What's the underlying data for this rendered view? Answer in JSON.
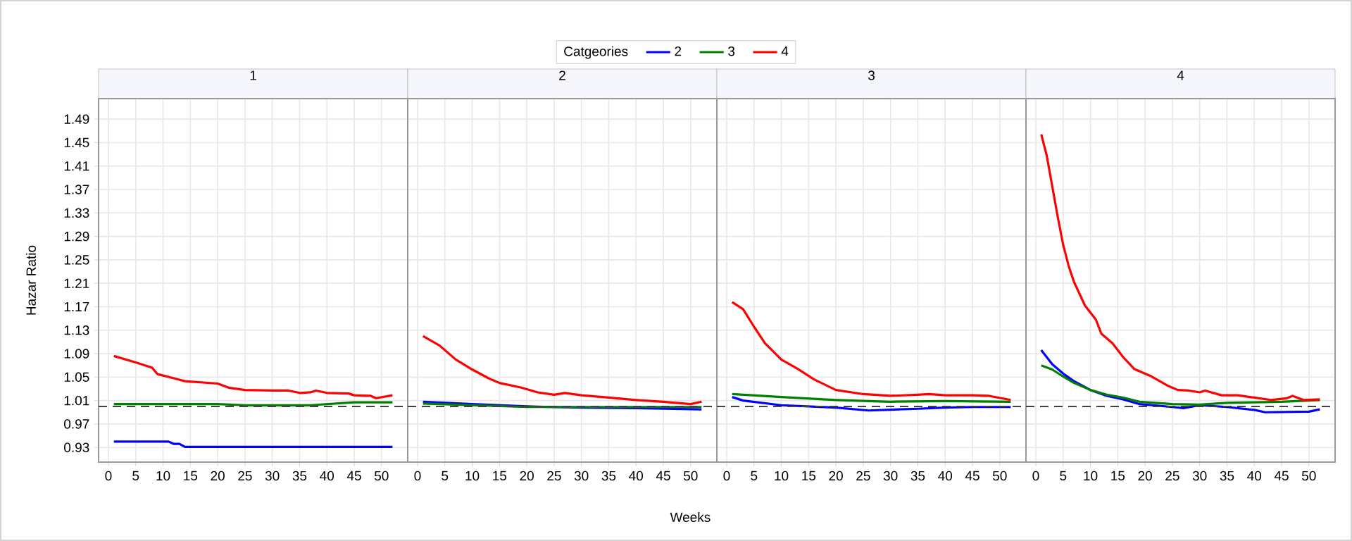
{
  "chart_data": [
    {
      "type": "line",
      "title": "1",
      "ylabel": "Hazar Ratio",
      "legend_title": "Catgeories",
      "legend": "top",
      "grid": true,
      "xlim": [
        -1.8,
        54.8
      ],
      "ylim": [
        0.905,
        1.525
      ],
      "xticks": [
        0,
        5,
        10,
        15,
        20,
        25,
        30,
        35,
        40,
        45,
        50
      ],
      "yticks": [
        0.93,
        0.97,
        1.01,
        1.05,
        1.09,
        1.13,
        1.17,
        1.21,
        1.25,
        1.29,
        1.33,
        1.37,
        1.41,
        1.45,
        1.49
      ],
      "ref_lines": [
        {
          "axis": "y",
          "value": 1,
          "color": "#404040",
          "line_style": "dashed"
        }
      ],
      "series": [
        {
          "name": "2",
          "color": "#0000ff",
          "x": [
            1,
            11,
            12,
            13,
            14,
            52
          ],
          "values": [
            0.94,
            0.94,
            0.936,
            0.936,
            0.931,
            0.931
          ]
        },
        {
          "name": "3",
          "color": "#008000",
          "x": [
            1,
            20,
            25,
            37,
            45,
            52
          ],
          "values": [
            1.004,
            1.004,
            1.002,
            1.002,
            1.007,
            1.007
          ]
        },
        {
          "name": "4",
          "color": "#ff0000",
          "x": [
            1,
            5,
            8,
            9,
            12,
            14,
            20,
            22,
            25,
            30,
            33,
            35,
            37,
            38,
            40,
            44,
            45,
            48,
            49,
            52
          ],
          "values": [
            1.086,
            1.075,
            1.066,
            1.055,
            1.048,
            1.043,
            1.039,
            1.032,
            1.028,
            1.027,
            1.027,
            1.023,
            1.024,
            1.027,
            1.023,
            1.022,
            1.019,
            1.018,
            1.014,
            1.019
          ]
        }
      ]
    },
    {
      "type": "line",
      "title": "2",
      "xlabel": "Weeks",
      "tick_labels": "x",
      "grid": true,
      "xlim": [
        -1.8,
        54.8
      ],
      "ylim": [
        0.905,
        1.525
      ],
      "xticks": [
        0,
        5,
        10,
        15,
        20,
        25,
        30,
        35,
        40,
        45,
        50
      ],
      "yticks": [
        0.93,
        0.97,
        1.01,
        1.05,
        1.09,
        1.13,
        1.17,
        1.21,
        1.25,
        1.29,
        1.33,
        1.37,
        1.41,
        1.45,
        1.49
      ],
      "ref_lines": [
        {
          "axis": "y",
          "value": 1,
          "color": "#404040",
          "line_style": "dashed"
        }
      ],
      "series": [
        {
          "color": "#0000ff",
          "x": [
            1,
            10,
            20,
            30,
            40,
            52
          ],
          "values": [
            1.008,
            1.004,
            1.0,
            0.998,
            0.997,
            0.995
          ]
        },
        {
          "color": "#008000",
          "x": [
            1,
            10,
            20,
            30,
            40,
            52
          ],
          "values": [
            1.005,
            1.002,
            0.999,
            0.999,
            0.999,
            0.999
          ]
        },
        {
          "color": "#ff0000",
          "x": [
            1,
            4,
            7,
            10,
            13,
            15,
            19,
            22,
            25,
            27,
            30,
            35,
            40,
            45,
            50,
            52
          ],
          "values": [
            1.12,
            1.104,
            1.08,
            1.063,
            1.048,
            1.04,
            1.032,
            1.024,
            1.02,
            1.023,
            1.019,
            1.015,
            1.011,
            1.008,
            1.004,
            1.008
          ]
        }
      ]
    },
    {
      "type": "line",
      "title": "3",
      "tick_labels": "x",
      "grid": true,
      "xlim": [
        -1.8,
        54.8
      ],
      "ylim": [
        0.905,
        1.525
      ],
      "xticks": [
        0,
        5,
        10,
        15,
        20,
        25,
        30,
        35,
        40,
        45,
        50
      ],
      "yticks": [
        0.93,
        0.97,
        1.01,
        1.05,
        1.09,
        1.13,
        1.17,
        1.21,
        1.25,
        1.29,
        1.33,
        1.37,
        1.41,
        1.45,
        1.49
      ],
      "ref_lines": [
        {
          "axis": "y",
          "value": 1,
          "color": "#404040",
          "line_style": "dashed"
        }
      ],
      "series": [
        {
          "color": "#0000ff",
          "x": [
            1,
            3,
            10,
            20,
            26,
            35,
            40,
            45,
            52
          ],
          "values": [
            1.016,
            1.01,
            1.002,
            0.998,
            0.993,
            0.996,
            0.998,
            0.999,
            0.999
          ]
        },
        {
          "color": "#008000",
          "x": [
            1,
            10,
            20,
            30,
            40,
            52
          ],
          "values": [
            1.021,
            1.016,
            1.011,
            1.008,
            1.009,
            1.008
          ]
        },
        {
          "color": "#ff0000",
          "x": [
            1,
            3,
            5,
            7,
            10,
            13,
            16,
            20,
            25,
            30,
            35,
            37,
            40,
            45,
            48,
            52
          ],
          "values": [
            1.178,
            1.166,
            1.136,
            1.108,
            1.08,
            1.064,
            1.046,
            1.028,
            1.021,
            1.018,
            1.02,
            1.021,
            1.019,
            1.019,
            1.018,
            1.011
          ]
        }
      ]
    },
    {
      "type": "line",
      "title": "4",
      "tick_labels": "x",
      "grid": true,
      "xlim": [
        -1.8,
        54.8
      ],
      "ylim": [
        0.905,
        1.525
      ],
      "xticks": [
        0,
        5,
        10,
        15,
        20,
        25,
        30,
        35,
        40,
        45,
        50
      ],
      "yticks": [
        0.93,
        0.97,
        1.01,
        1.05,
        1.09,
        1.13,
        1.17,
        1.21,
        1.25,
        1.29,
        1.33,
        1.37,
        1.41,
        1.45,
        1.49
      ],
      "ref_lines": [
        {
          "axis": "y",
          "value": 1,
          "color": "#404040",
          "line_style": "dashed"
        }
      ],
      "series": [
        {
          "color": "#0000ff",
          "x": [
            1,
            3,
            5,
            7,
            10,
            13,
            16,
            19,
            25,
            27,
            30,
            35,
            40,
            42,
            50,
            52
          ],
          "values": [
            1.096,
            1.072,
            1.056,
            1.043,
            1.028,
            1.018,
            1.012,
            1.004,
            0.999,
            0.997,
            1.002,
            0.999,
            0.994,
            0.99,
            0.991,
            0.995
          ]
        },
        {
          "color": "#008000",
          "x": [
            1,
            3,
            5,
            7,
            10,
            13,
            16,
            19,
            25,
            30,
            35,
            40,
            45,
            52
          ],
          "values": [
            1.07,
            1.063,
            1.051,
            1.04,
            1.028,
            1.02,
            1.015,
            1.008,
            1.004,
            1.003,
            1.006,
            1.007,
            1.008,
            1.011
          ]
        },
        {
          "color": "#ff0000",
          "x": [
            1,
            2,
            3,
            4,
            5,
            6,
            7,
            9,
            11,
            12,
            14,
            16,
            18,
            21,
            24,
            26,
            28,
            30,
            31,
            34,
            37,
            40,
            43,
            46,
            47,
            49,
            52
          ],
          "values": [
            1.464,
            1.428,
            1.376,
            1.324,
            1.276,
            1.24,
            1.212,
            1.172,
            1.148,
            1.124,
            1.108,
            1.084,
            1.064,
            1.052,
            1.036,
            1.028,
            1.027,
            1.024,
            1.027,
            1.019,
            1.019,
            1.015,
            1.011,
            1.014,
            1.018,
            1.011,
            1.012
          ]
        }
      ]
    }
  ]
}
